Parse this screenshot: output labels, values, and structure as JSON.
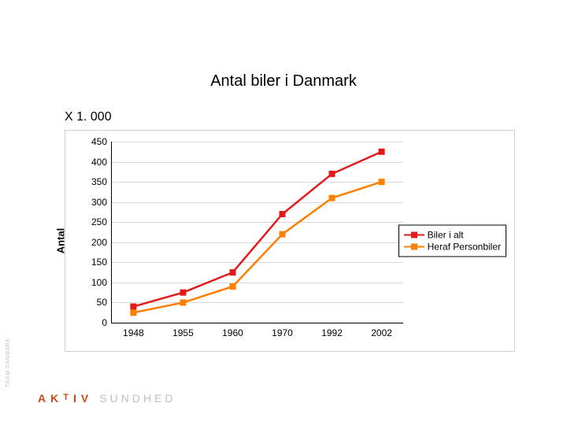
{
  "title": "Antal biler i Danmark",
  "subtitle": "X 1. 000",
  "ylabel": "Antal",
  "chart": {
    "type": "line",
    "background_color": "#ffffff",
    "grid_color": "#d8d8d8",
    "axis_color": "#000000",
    "font_family": "Arial",
    "tick_fontsize": 12,
    "label_fontsize": 13,
    "label_fontweight": "bold",
    "xlim": [
      0,
      5
    ],
    "ylim": [
      0,
      450
    ],
    "ytick_step": 50,
    "yticks": [
      0,
      50,
      100,
      150,
      200,
      250,
      300,
      350,
      400,
      450
    ],
    "categories": [
      "1948",
      "1955",
      "1960",
      "1970",
      "1992",
      "2002"
    ],
    "x_positions": [
      0.4,
      1.32,
      2.24,
      3.16,
      4.08,
      5.0
    ],
    "series": [
      {
        "name": "Biler i alt",
        "values": [
          40,
          75,
          125,
          270,
          370,
          425
        ],
        "color": "#e31a1c",
        "line_width": 2.5,
        "marker": "square",
        "marker_size": 8
      },
      {
        "name": "Heraf Personbiler",
        "values": [
          25,
          50,
          90,
          220,
          310,
          350
        ],
        "color": "#ff7f00",
        "line_width": 2.5,
        "marker": "square",
        "marker_size": 8
      }
    ],
    "legend": {
      "position": "right"
    }
  },
  "footer": {
    "brand_letters": [
      "A",
      "K",
      "T",
      "I",
      "V"
    ],
    "brand_word": "SUNDHED",
    "side_caption": "TEAM DANMARK"
  }
}
